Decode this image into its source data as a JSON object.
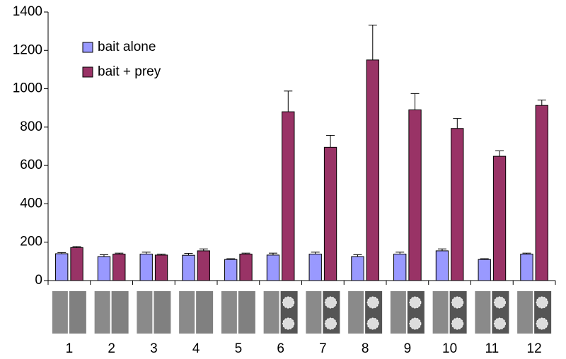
{
  "chart_data": {
    "type": "bar",
    "categories": [
      "1",
      "2",
      "3",
      "4",
      "5",
      "6",
      "7",
      "8",
      "9",
      "10",
      "11",
      "12"
    ],
    "series": [
      {
        "name": "bait alone",
        "color": "#9999ff",
        "values": [
          140,
          125,
          138,
          132,
          110,
          133,
          138,
          125,
          138,
          155,
          110,
          138
        ],
        "errors": [
          6,
          10,
          10,
          10,
          4,
          10,
          10,
          10,
          10,
          10,
          4,
          5
        ]
      },
      {
        "name": "bait + prey",
        "color": "#993366",
        "values": [
          172,
          138,
          133,
          155,
          138,
          880,
          695,
          1150,
          890,
          793,
          648,
          913
        ],
        "errors": [
          5,
          5,
          5,
          10,
          5,
          108,
          62,
          182,
          85,
          52,
          28,
          28
        ]
      }
    ],
    "ylim": [
      0,
      1400
    ],
    "yticks": [
      0,
      200,
      400,
      600,
      800,
      1000,
      1200,
      1400
    ],
    "grid": false,
    "legend": "upper left"
  }
}
